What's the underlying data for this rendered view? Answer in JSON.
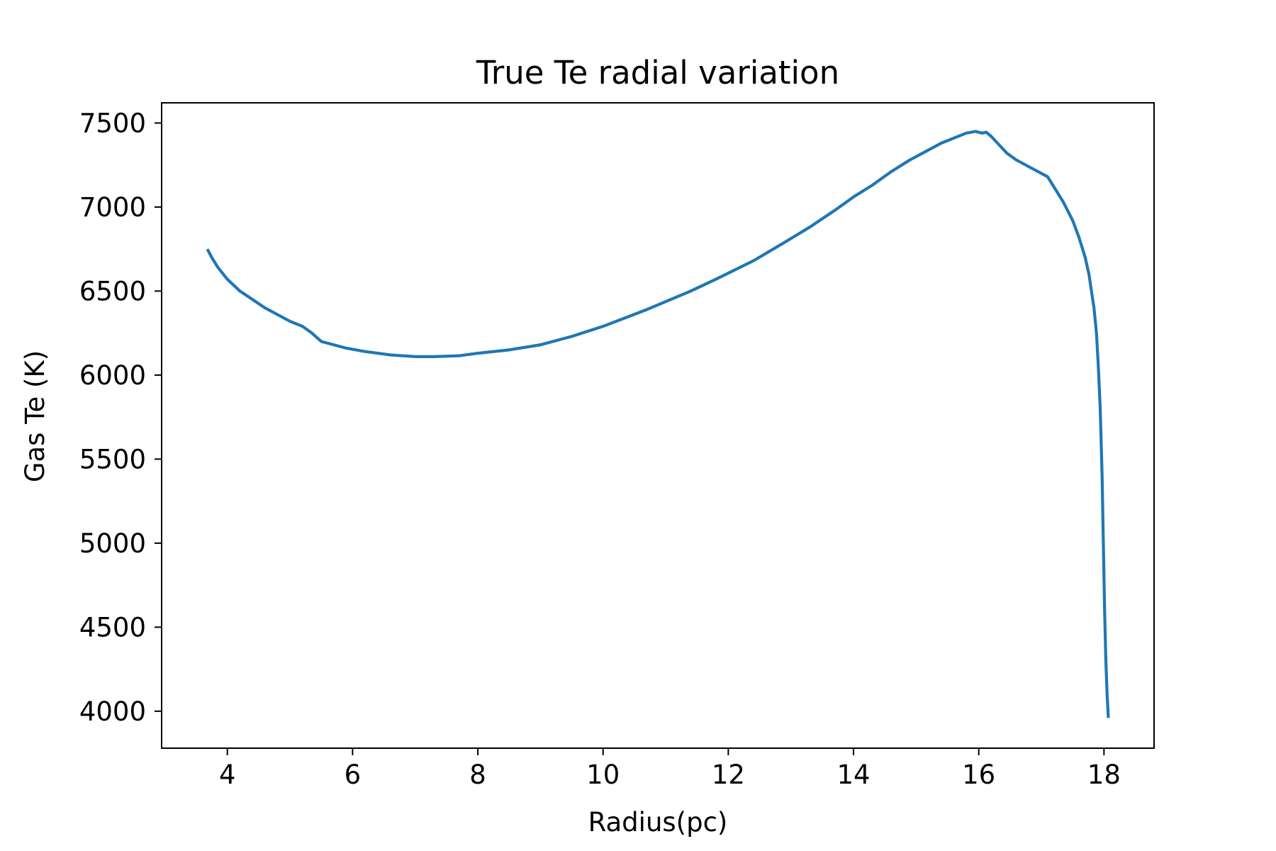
{
  "chart_data": {
    "type": "line",
    "title": "True Te radial variation",
    "xlabel": "Radius(pc)",
    "ylabel": "Gas Te (K)",
    "xlim": [
      2.95,
      18.8
    ],
    "ylim": [
      3780,
      7620
    ],
    "xticks": [
      4,
      6,
      8,
      10,
      12,
      14,
      16,
      18
    ],
    "yticks": [
      4000,
      4500,
      5000,
      5500,
      6000,
      6500,
      7000,
      7500
    ],
    "grid": false,
    "legend": "none",
    "colors": {
      "line": "#1f77b4",
      "axes": "#000000",
      "background": "#ffffff"
    },
    "series": [
      {
        "x": [
          3.68,
          3.75,
          3.85,
          4.0,
          4.2,
          4.4,
          4.6,
          4.85,
          5.0,
          5.2,
          5.35,
          5.5,
          5.7,
          5.9,
          6.2,
          6.6,
          7.0,
          7.3,
          7.7,
          8.0,
          8.5,
          9.0,
          9.5,
          10.0,
          10.7,
          11.4,
          11.8,
          12.4,
          12.9,
          13.3,
          13.7,
          14.0,
          14.3,
          14.6,
          14.9,
          15.1,
          15.4,
          15.6,
          15.8,
          15.95,
          16.05,
          16.12,
          16.2,
          16.3,
          16.45,
          16.6,
          16.8,
          17.0,
          17.1,
          17.2,
          17.35,
          17.5,
          17.6,
          17.7,
          17.76,
          17.8,
          17.84,
          17.88,
          17.91,
          17.94,
          17.97,
          17.99,
          18.01,
          18.03,
          18.05,
          18.07
        ],
        "y": [
          6750,
          6700,
          6640,
          6570,
          6500,
          6450,
          6400,
          6350,
          6320,
          6290,
          6250,
          6200,
          6180,
          6160,
          6140,
          6120,
          6110,
          6110,
          6115,
          6130,
          6150,
          6180,
          6230,
          6290,
          6390,
          6500,
          6570,
          6680,
          6790,
          6880,
          6980,
          7060,
          7130,
          7210,
          7280,
          7320,
          7380,
          7410,
          7440,
          7450,
          7440,
          7445,
          7420,
          7380,
          7320,
          7280,
          7240,
          7200,
          7180,
          7120,
          7030,
          6920,
          6820,
          6700,
          6600,
          6500,
          6400,
          6250,
          6050,
          5800,
          5400,
          5000,
          4600,
          4300,
          4100,
          3960
        ]
      }
    ]
  }
}
